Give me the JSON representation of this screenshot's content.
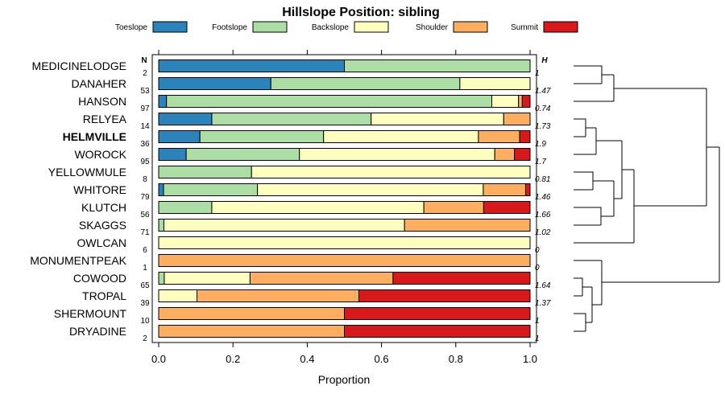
{
  "chart_data": {
    "type": "bar",
    "stacked": true,
    "orientation": "horizontal",
    "title": "Hillslope Position: sibling",
    "xlabel": "Proportion",
    "xlim": [
      0,
      1
    ],
    "xticks": [
      "0.0",
      "0.2",
      "0.4",
      "0.6",
      "0.8",
      "1.0"
    ],
    "n_header": "N",
    "h_header": "H",
    "highlight": "HELMVILLE",
    "series": [
      {
        "name": "Toeslope",
        "color": "#2b83ba"
      },
      {
        "name": "Footslope",
        "color": "#abdda4"
      },
      {
        "name": "Backslope",
        "color": "#ffffbf"
      },
      {
        "name": "Shoulder",
        "color": "#fdae61"
      },
      {
        "name": "Summit",
        "color": "#d7191c"
      }
    ],
    "categories": [
      {
        "label": "MEDICINELODGE",
        "n": "2",
        "h": "1",
        "values": [
          0.5,
          0.5,
          0,
          0,
          0
        ]
      },
      {
        "label": "DANAHER",
        "n": "53",
        "h": "1.47",
        "values": [
          0.302,
          0.509,
          0.189,
          0,
          0
        ]
      },
      {
        "label": "HANSON",
        "n": "97",
        "h": "0.74",
        "values": [
          0.021,
          0.876,
          0.072,
          0.01,
          0.021
        ]
      },
      {
        "label": "RELYEA",
        "n": "14",
        "h": "1.73",
        "values": [
          0.143,
          0.429,
          0.357,
          0.071,
          0
        ]
      },
      {
        "label": "HELMVILLE",
        "n": "36",
        "h": "1.9",
        "values": [
          0.111,
          0.333,
          0.417,
          0.111,
          0.028
        ]
      },
      {
        "label": "WOROCK",
        "n": "95",
        "h": "1.7",
        "values": [
          0.074,
          0.305,
          0.526,
          0.053,
          0.042
        ]
      },
      {
        "label": "YELLOWMULE",
        "n": "8",
        "h": "0.81",
        "values": [
          0,
          0.25,
          0.75,
          0,
          0
        ]
      },
      {
        "label": "WHITORE",
        "n": "79",
        "h": "1.46",
        "values": [
          0.013,
          0.253,
          0.608,
          0.114,
          0.012
        ]
      },
      {
        "label": "KLUTCH",
        "n": "56",
        "h": "1.66",
        "values": [
          0,
          0.143,
          0.571,
          0.161,
          0.125
        ]
      },
      {
        "label": "SKAGGS",
        "n": "71",
        "h": "1.02",
        "values": [
          0,
          0.014,
          0.648,
          0.338,
          0
        ]
      },
      {
        "label": "OWLCAN",
        "n": "6",
        "h": "0",
        "values": [
          0,
          0,
          1,
          0,
          0
        ]
      },
      {
        "label": "MONUMENTPEAK",
        "n": "1",
        "h": "0",
        "values": [
          0,
          0,
          0,
          1,
          0
        ]
      },
      {
        "label": "COWOOD",
        "n": "65",
        "h": "1.64",
        "values": [
          0,
          0.015,
          0.231,
          0.385,
          0.369
        ]
      },
      {
        "label": "TROPAL",
        "n": "39",
        "h": "1.37",
        "values": [
          0,
          0,
          0.103,
          0.436,
          0.461
        ]
      },
      {
        "label": "SHERMOUNT",
        "n": "10",
        "h": "1",
        "values": [
          0,
          0,
          0,
          0.5,
          0.5
        ]
      },
      {
        "label": "DRYADINE",
        "n": "2",
        "h": "1",
        "values": [
          0,
          0,
          0,
          0.5,
          0.5
        ]
      }
    ]
  }
}
